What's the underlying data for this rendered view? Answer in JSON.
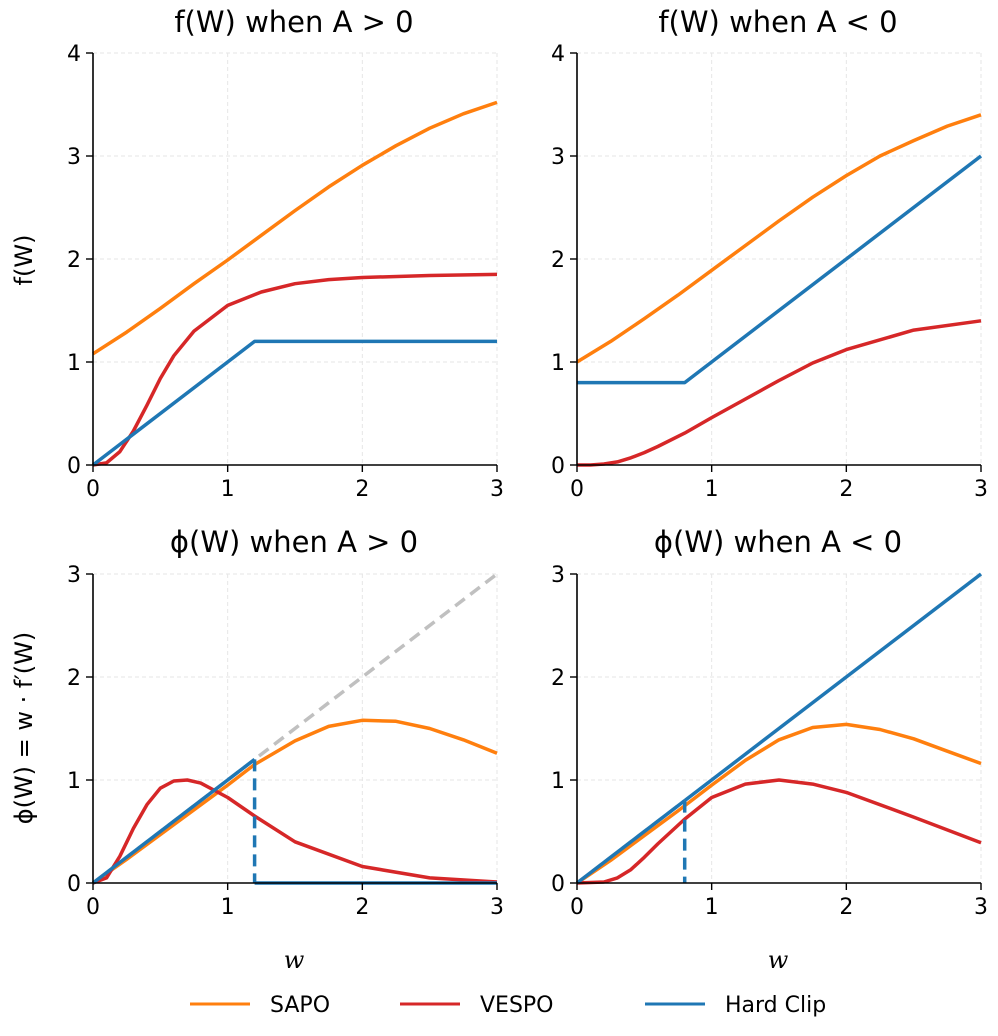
{
  "colors": {
    "SAPO": "#ff7f0e",
    "VESPO": "#d62728",
    "Hard Clip": "#1f77b4",
    "reference": "#c0c0c0",
    "grid": "#e6e6e6"
  },
  "legend": [
    {
      "name": "SAPO",
      "color": "#ff7f0e"
    },
    {
      "name": "VESPO",
      "color": "#d62728"
    },
    {
      "name": "Hard Clip",
      "color": "#1f77b4"
    }
  ],
  "chart_data": [
    {
      "type": "line",
      "title": "f(W) when A > 0",
      "xlabel": "",
      "ylabel": "f(W)",
      "xlim": [
        0,
        3
      ],
      "ylim": [
        0,
        4
      ],
      "xticks": [
        "0",
        "1",
        "2",
        "3"
      ],
      "yticks": [
        "0",
        "1",
        "2",
        "3",
        "4"
      ],
      "grid": true,
      "series": [
        {
          "name": "SAPO",
          "x": [
            0,
            0.25,
            0.5,
            0.75,
            1.0,
            1.25,
            1.5,
            1.75,
            2.0,
            2.25,
            2.5,
            2.75,
            3.0
          ],
          "values": [
            1.08,
            1.29,
            1.52,
            1.76,
            1.99,
            2.23,
            2.47,
            2.7,
            2.91,
            3.1,
            3.27,
            3.41,
            3.52
          ]
        },
        {
          "name": "VESPO",
          "x": [
            0,
            0.1,
            0.2,
            0.3,
            0.4,
            0.5,
            0.6,
            0.75,
            1.0,
            1.25,
            1.5,
            1.75,
            2.0,
            2.5,
            3.0
          ],
          "values": [
            0,
            0.02,
            0.13,
            0.33,
            0.58,
            0.84,
            1.06,
            1.3,
            1.55,
            1.68,
            1.76,
            1.8,
            1.82,
            1.84,
            1.85
          ]
        },
        {
          "name": "Hard Clip",
          "x": [
            0,
            1.2,
            3.0
          ],
          "values": [
            0,
            1.2,
            1.2
          ]
        }
      ]
    },
    {
      "type": "line",
      "title": "f(W) when A < 0",
      "xlabel": "",
      "ylabel": "",
      "xlim": [
        0,
        3
      ],
      "ylim": [
        0,
        4
      ],
      "xticks": [
        "0",
        "1",
        "2",
        "3"
      ],
      "yticks": [
        "0",
        "1",
        "2",
        "3",
        "4"
      ],
      "grid": true,
      "series": [
        {
          "name": "SAPO",
          "x": [
            0,
            0.25,
            0.5,
            0.75,
            1.0,
            1.25,
            1.5,
            1.75,
            2.0,
            2.25,
            2.5,
            2.75,
            3.0
          ],
          "values": [
            1.0,
            1.2,
            1.42,
            1.65,
            1.89,
            2.13,
            2.37,
            2.6,
            2.81,
            3.0,
            3.15,
            3.29,
            3.4
          ]
        },
        {
          "name": "VESPO",
          "x": [
            0,
            0.1,
            0.2,
            0.3,
            0.4,
            0.5,
            0.6,
            0.8,
            1.0,
            1.25,
            1.5,
            1.75,
            2.0,
            2.5,
            3.0
          ],
          "values": [
            0,
            0.0,
            0.01,
            0.03,
            0.07,
            0.12,
            0.18,
            0.31,
            0.46,
            0.64,
            0.82,
            0.99,
            1.12,
            1.31,
            1.4
          ]
        },
        {
          "name": "Hard Clip",
          "x": [
            0,
            0.8,
            3.0
          ],
          "values": [
            0.8,
            0.8,
            3.0
          ]
        }
      ]
    },
    {
      "type": "line",
      "title": "ϕ(W) when A > 0",
      "xlabel": "w",
      "ylabel": "ϕ(W) = w · f′(W)",
      "xlim": [
        0,
        3
      ],
      "ylim": [
        0,
        3
      ],
      "xticks": [
        "0",
        "1",
        "2",
        "3"
      ],
      "yticks": [
        "0",
        "1",
        "2",
        "3"
      ],
      "grid": true,
      "series": [
        {
          "name": "reference",
          "x": [
            0,
            3
          ],
          "values": [
            0,
            3
          ],
          "dashed": true
        },
        {
          "name": "SAPO",
          "x": [
            0,
            0.25,
            0.5,
            0.75,
            1.0,
            1.2,
            1.5,
            1.75,
            2.0,
            2.25,
            2.5,
            2.75,
            3.0
          ],
          "values": [
            0,
            0.23,
            0.47,
            0.71,
            0.95,
            1.15,
            1.38,
            1.52,
            1.58,
            1.57,
            1.5,
            1.39,
            1.26
          ]
        },
        {
          "name": "VESPO",
          "x": [
            0,
            0.1,
            0.2,
            0.3,
            0.4,
            0.5,
            0.6,
            0.7,
            0.8,
            1.0,
            1.2,
            1.5,
            2.0,
            2.5,
            3.0
          ],
          "values": [
            0,
            0.05,
            0.26,
            0.53,
            0.76,
            0.92,
            0.99,
            1.0,
            0.97,
            0.83,
            0.65,
            0.4,
            0.16,
            0.05,
            0.01
          ]
        },
        {
          "name": "Hard Clip",
          "x": [
            0,
            1.2
          ],
          "values": [
            0,
            1.2
          ]
        },
        {
          "name": "Hard Clip",
          "x": [
            1.2,
            1.2
          ],
          "values": [
            1.2,
            0
          ],
          "dashed": true
        },
        {
          "name": "Hard Clip",
          "x": [
            1.2,
            3.0
          ],
          "values": [
            0,
            0
          ]
        }
      ]
    },
    {
      "type": "line",
      "title": "ϕ(W) when A < 0",
      "xlabel": "w",
      "ylabel": "",
      "xlim": [
        0,
        3
      ],
      "ylim": [
        0,
        3
      ],
      "xticks": [
        "0",
        "1",
        "2",
        "3"
      ],
      "yticks": [
        "0",
        "1",
        "2",
        "3"
      ],
      "grid": true,
      "series": [
        {
          "name": "reference",
          "x": [
            0,
            0.8
          ],
          "values": [
            0,
            0.8
          ],
          "dashed": true
        },
        {
          "name": "SAPO",
          "x": [
            0,
            0.25,
            0.5,
            0.75,
            1.0,
            1.25,
            1.5,
            1.75,
            2.0,
            2.25,
            2.5,
            2.75,
            3.0
          ],
          "values": [
            0,
            0.22,
            0.46,
            0.7,
            0.95,
            1.19,
            1.39,
            1.51,
            1.54,
            1.49,
            1.4,
            1.28,
            1.16
          ]
        },
        {
          "name": "VESPO",
          "x": [
            0,
            0.2,
            0.3,
            0.4,
            0.5,
            0.6,
            0.8,
            1.0,
            1.25,
            1.5,
            1.75,
            2.0,
            2.5,
            3.0
          ],
          "values": [
            0,
            0.01,
            0.05,
            0.13,
            0.25,
            0.38,
            0.62,
            0.83,
            0.96,
            1.0,
            0.96,
            0.88,
            0.64,
            0.39
          ]
        },
        {
          "name": "Hard Clip",
          "x": [
            0,
            0.8
          ],
          "values": [
            0,
            0.8
          ]
        },
        {
          "name": "Hard Clip",
          "x": [
            0.8,
            0.8
          ],
          "values": [
            0.8,
            0
          ],
          "dashed": true
        },
        {
          "name": "Hard Clip",
          "x": [
            0.8,
            0.8
          ],
          "values": [
            0.8,
            0.8
          ]
        },
        {
          "name": "Hard Clip",
          "x": [
            0.8,
            3.0
          ],
          "values": [
            0.8,
            3.0
          ]
        }
      ]
    }
  ]
}
